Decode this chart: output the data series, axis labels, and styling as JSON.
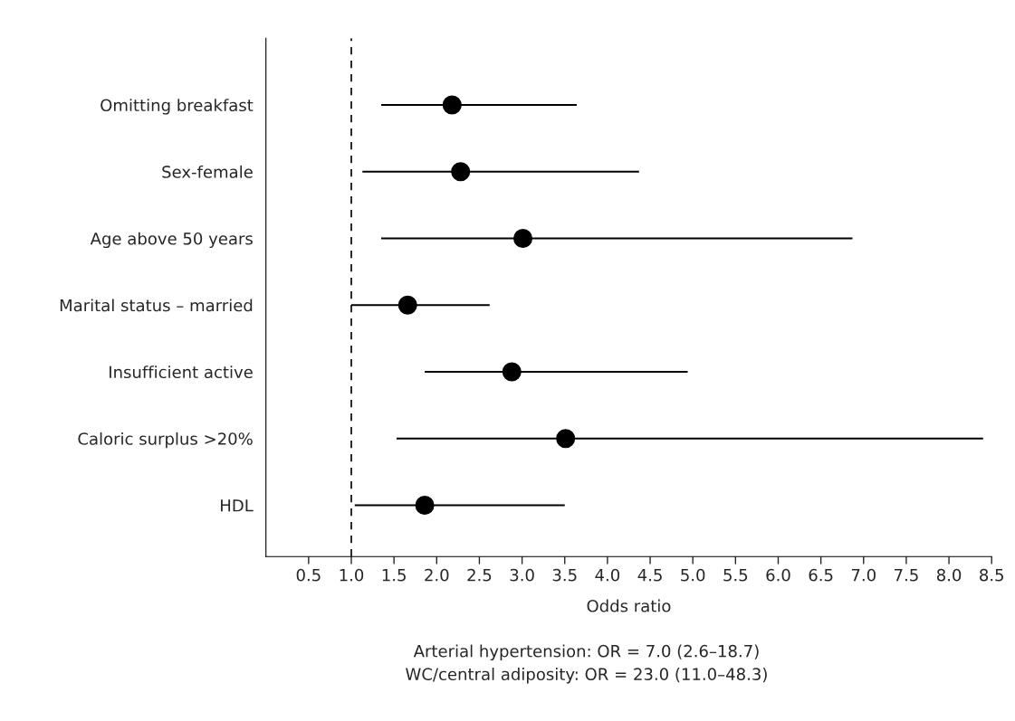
{
  "chart_data": {
    "type": "scatter",
    "orientation": "horizontal",
    "categories": [
      "Omitting breakfast",
      "Sex-female",
      "Age above 50 years",
      "Marital status – married",
      "Insufficient active",
      "Caloric surplus >20%",
      "HDL"
    ],
    "color": "#000000",
    "values": [
      2.18,
      2.28,
      3.01,
      1.66,
      2.88,
      3.51,
      1.86
    ],
    "errors": [
      [
        1.35,
        3.64
      ],
      [
        1.13,
        4.37
      ],
      [
        1.35,
        6.87
      ],
      [
        1.0,
        2.62
      ],
      [
        1.86,
        4.94
      ],
      [
        1.53,
        8.4
      ],
      [
        1.04,
        3.5
      ]
    ],
    "marker": "circle",
    "xlabel": "Odds ratio",
    "xlim": [
      0,
      8.5
    ],
    "xticks": [
      0.5,
      {
        "value": 1,
        "label": "1.0"
      },
      1.5,
      {
        "value": 2,
        "label": "2.0"
      },
      2.5,
      {
        "value": 3,
        "label": "3.0"
      },
      3.5,
      {
        "value": 4,
        "label": "4.0"
      },
      4.5,
      {
        "value": 5,
        "label": "5.0"
      },
      5.5,
      {
        "value": 6,
        "label": "6.0"
      },
      6.5,
      {
        "value": 7,
        "label": "7.0"
      },
      7.5,
      {
        "value": 8,
        "label": "8.0"
      },
      8.5
    ],
    "ref_lines": [
      {
        "axis": "x",
        "value": 1,
        "line_style": "dashed",
        "color": "#000000"
      }
    ],
    "grid": false,
    "legend": false,
    "annotations": [
      "Arterial hypertension: OR = 7.0 (2.6–18.7)",
      "WC/central adiposity: OR = 23.0 (11.0–48.3)"
    ]
  }
}
